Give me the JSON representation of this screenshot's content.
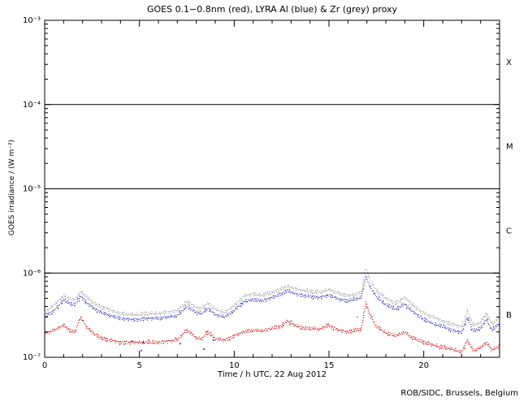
{
  "title": "GOES 0.1−0.8nm (red), LYRA Al (blue) & Zr (grey) proxy",
  "footer": "ROB/SIDC, Brussels, Belgium",
  "colors": {
    "red": "#cc0000",
    "blue": "#2222aa",
    "grey": "#999999",
    "axis": "#000000",
    "background": "#ffffff"
  },
  "chart_data": {
    "type": "line",
    "title": "GOES 0.1−0.8nm (red), LYRA Al (blue) & Zr (grey) proxy",
    "xlabel": "Time / h UTC, 22 Aug 2012",
    "ylabel": "GOES irradiance / (W m⁻²)",
    "x_range": [
      0,
      24
    ],
    "y_scale": "log10",
    "y_range_exponents": [
      -7,
      -3
    ],
    "x_major_ticks": [
      0,
      5,
      10,
      15,
      20
    ],
    "x_minor_step": 1,
    "y_tick_exponents": [
      -3,
      -4,
      -5,
      -6,
      -7
    ],
    "y_tick_labels": [
      "10⁻³",
      "10⁻⁴",
      "10⁻⁵",
      "10⁻⁶",
      "10⁻⁷"
    ],
    "hline_exponents": [
      -4,
      -5,
      -6
    ],
    "flare_classes": [
      {
        "label": "X",
        "center_exp": -3.5
      },
      {
        "label": "M",
        "center_exp": -4.5
      },
      {
        "label": "C",
        "center_exp": -5.5
      },
      {
        "label": "B",
        "center_exp": -6.5
      }
    ],
    "grid": false,
    "legend_position": "in-title",
    "series": [
      {
        "name": "LYRA Zr proxy",
        "color_key": "grey",
        "points": [
          [
            0,
            3.4e-07
          ],
          [
            0.5,
            4.2e-07
          ],
          [
            1.0,
            5.4e-07
          ],
          [
            1.3,
            5e-07
          ],
          [
            1.6,
            4.8e-07
          ],
          [
            1.9,
            6e-07
          ],
          [
            2.2,
            5.2e-07
          ],
          [
            2.6,
            4.4e-07
          ],
          [
            3.0,
            4e-07
          ],
          [
            3.5,
            3.6e-07
          ],
          [
            4.0,
            3.3e-07
          ],
          [
            4.5,
            3.2e-07
          ],
          [
            5.0,
            3.2e-07
          ],
          [
            5.5,
            3.3e-07
          ],
          [
            6.0,
            3.3e-07
          ],
          [
            6.5,
            3.4e-07
          ],
          [
            7.0,
            3.6e-07
          ],
          [
            7.5,
            4.6e-07
          ],
          [
            8.0,
            3.9e-07
          ],
          [
            8.3,
            3.8e-07
          ],
          [
            8.6,
            4.4e-07
          ],
          [
            9.0,
            3.7e-07
          ],
          [
            9.5,
            3.4e-07
          ],
          [
            10.0,
            4.1e-07
          ],
          [
            10.5,
            5.3e-07
          ],
          [
            11.0,
            5.6e-07
          ],
          [
            11.5,
            5.4e-07
          ],
          [
            12.0,
            5.9e-07
          ],
          [
            12.4,
            6.3e-07
          ],
          [
            12.8,
            7.1e-07
          ],
          [
            13.2,
            6.5e-07
          ],
          [
            13.6,
            6.2e-07
          ],
          [
            14.0,
            6.1e-07
          ],
          [
            14.5,
            5.9e-07
          ],
          [
            15.0,
            6.4e-07
          ],
          [
            15.5,
            5.7e-07
          ],
          [
            16.0,
            5.4e-07
          ],
          [
            16.4,
            5.6e-07
          ],
          [
            16.7,
            5.9e-07
          ],
          [
            16.95,
            1.15e-06
          ],
          [
            17.15,
            8.5e-07
          ],
          [
            17.5,
            6.2e-07
          ],
          [
            18.0,
            5e-07
          ],
          [
            18.5,
            4.4e-07
          ],
          [
            19.0,
            5.1e-07
          ],
          [
            19.4,
            4.2e-07
          ],
          [
            20.0,
            3.3e-07
          ],
          [
            20.5,
            3e-07
          ],
          [
            21.0,
            2.7e-07
          ],
          [
            21.5,
            2.5e-07
          ],
          [
            22.0,
            2.3e-07
          ],
          [
            22.3,
            3.6e-07
          ],
          [
            22.6,
            2.4e-07
          ],
          [
            23.0,
            2.6e-07
          ],
          [
            23.3,
            3.3e-07
          ],
          [
            23.6,
            2.5e-07
          ],
          [
            24.0,
            2.9e-07
          ]
        ]
      },
      {
        "name": "LYRA Al proxy",
        "color_key": "blue",
        "points": [
          [
            0,
            3e-07
          ],
          [
            0.5,
            3.6e-07
          ],
          [
            1.0,
            4.8e-07
          ],
          [
            1.3,
            4.4e-07
          ],
          [
            1.6,
            4.2e-07
          ],
          [
            1.9,
            5.3e-07
          ],
          [
            2.2,
            4.5e-07
          ],
          [
            2.6,
            3.8e-07
          ],
          [
            3.0,
            3.4e-07
          ],
          [
            3.5,
            3.1e-07
          ],
          [
            4.0,
            2.9e-07
          ],
          [
            4.5,
            2.8e-07
          ],
          [
            5.0,
            2.8e-07
          ],
          [
            5.5,
            2.9e-07
          ],
          [
            6.0,
            2.9e-07
          ],
          [
            6.5,
            3e-07
          ],
          [
            7.0,
            3.1e-07
          ],
          [
            7.5,
            4e-07
          ],
          [
            8.0,
            3.4e-07
          ],
          [
            8.3,
            3.3e-07
          ],
          [
            8.6,
            3.8e-07
          ],
          [
            9.0,
            3.2e-07
          ],
          [
            9.5,
            3e-07
          ],
          [
            10.0,
            3.6e-07
          ],
          [
            10.5,
            4.6e-07
          ],
          [
            11.0,
            4.8e-07
          ],
          [
            11.5,
            4.7e-07
          ],
          [
            12.0,
            5.1e-07
          ],
          [
            12.4,
            5.5e-07
          ],
          [
            12.8,
            6.2e-07
          ],
          [
            13.2,
            5.7e-07
          ],
          [
            13.6,
            5.4e-07
          ],
          [
            14.0,
            5.3e-07
          ],
          [
            14.5,
            5.1e-07
          ],
          [
            15.0,
            5.5e-07
          ],
          [
            15.5,
            4.9e-07
          ],
          [
            16.0,
            4.7e-07
          ],
          [
            16.4,
            4.9e-07
          ],
          [
            16.7,
            5.1e-07
          ],
          [
            16.95,
            9.2e-07
          ],
          [
            17.15,
            7e-07
          ],
          [
            17.5,
            5.2e-07
          ],
          [
            18.0,
            4.2e-07
          ],
          [
            18.5,
            3.7e-07
          ],
          [
            19.0,
            4.3e-07
          ],
          [
            19.4,
            3.5e-07
          ],
          [
            20.0,
            2.8e-07
          ],
          [
            20.5,
            2.5e-07
          ],
          [
            21.0,
            2.3e-07
          ],
          [
            21.5,
            2.1e-07
          ],
          [
            22.0,
            1.95e-07
          ],
          [
            22.3,
            3e-07
          ],
          [
            22.6,
            2.05e-07
          ],
          [
            23.0,
            2.2e-07
          ],
          [
            23.3,
            2.8e-07
          ],
          [
            23.6,
            2.1e-07
          ],
          [
            24.0,
            2.5e-07
          ]
        ]
      },
      {
        "name": "GOES 0.1-0.8nm",
        "color_key": "red",
        "points": [
          [
            0,
            1.9e-07
          ],
          [
            0.5,
            2.1e-07
          ],
          [
            1.0,
            2.4e-07
          ],
          [
            1.3,
            2.1e-07
          ],
          [
            1.6,
            2e-07
          ],
          [
            1.9,
            3e-07
          ],
          [
            2.2,
            2.3e-07
          ],
          [
            2.6,
            1.9e-07
          ],
          [
            3.0,
            1.7e-07
          ],
          [
            3.5,
            1.6e-07
          ],
          [
            4.0,
            1.5e-07
          ],
          [
            4.5,
            1.5e-07
          ],
          [
            5.0,
            1.5e-07
          ],
          [
            5.5,
            1.5e-07
          ],
          [
            6.0,
            1.5e-07
          ],
          [
            6.5,
            1.55e-07
          ],
          [
            7.0,
            1.6e-07
          ],
          [
            7.5,
            2.1e-07
          ],
          [
            8.0,
            1.7e-07
          ],
          [
            8.3,
            1.65e-07
          ],
          [
            8.6,
            2e-07
          ],
          [
            9.0,
            1.65e-07
          ],
          [
            9.5,
            1.6e-07
          ],
          [
            10.0,
            1.8e-07
          ],
          [
            10.5,
            2e-07
          ],
          [
            11.0,
            2.1e-07
          ],
          [
            11.5,
            2.05e-07
          ],
          [
            12.0,
            2.2e-07
          ],
          [
            12.4,
            2.3e-07
          ],
          [
            12.8,
            2.7e-07
          ],
          [
            13.2,
            2.4e-07
          ],
          [
            13.6,
            2.25e-07
          ],
          [
            14.0,
            2.2e-07
          ],
          [
            14.5,
            2.15e-07
          ],
          [
            15.0,
            2.4e-07
          ],
          [
            15.5,
            2.1e-07
          ],
          [
            16.0,
            2e-07
          ],
          [
            16.4,
            2.1e-07
          ],
          [
            16.7,
            2.15e-07
          ],
          [
            16.95,
            4.4e-07
          ],
          [
            17.15,
            3.2e-07
          ],
          [
            17.5,
            2.3e-07
          ],
          [
            18.0,
            1.95e-07
          ],
          [
            18.5,
            1.8e-07
          ],
          [
            19.0,
            2e-07
          ],
          [
            19.4,
            1.7e-07
          ],
          [
            20.0,
            1.5e-07
          ],
          [
            20.5,
            1.4e-07
          ],
          [
            21.0,
            1.3e-07
          ],
          [
            21.5,
            1.25e-07
          ],
          [
            22.0,
            1.15e-07
          ],
          [
            22.3,
            1.6e-07
          ],
          [
            22.6,
            1.2e-07
          ],
          [
            23.0,
            1.3e-07
          ],
          [
            23.3,
            1.5e-07
          ],
          [
            23.6,
            1.22e-07
          ],
          [
            24.0,
            1.35e-07
          ]
        ]
      }
    ],
    "outliers": [
      {
        "color_key": "blue",
        "points": [
          [
            4.6,
            1.55e-07
          ],
          [
            5.2,
            1.5e-07
          ],
          [
            7.15,
            1.45e-07
          ],
          [
            8.9,
            1.6e-07
          ]
        ]
      },
      {
        "color_key": "grey",
        "points": [
          [
            5.5,
            1.6e-07
          ],
          [
            6.9,
            1.7e-07
          ],
          [
            16.5,
            3e-07
          ]
        ]
      },
      {
        "color_key": "red",
        "points": [
          [
            5.1,
            1.2e-07
          ],
          [
            8.4,
            1.25e-07
          ]
        ]
      }
    ]
  }
}
